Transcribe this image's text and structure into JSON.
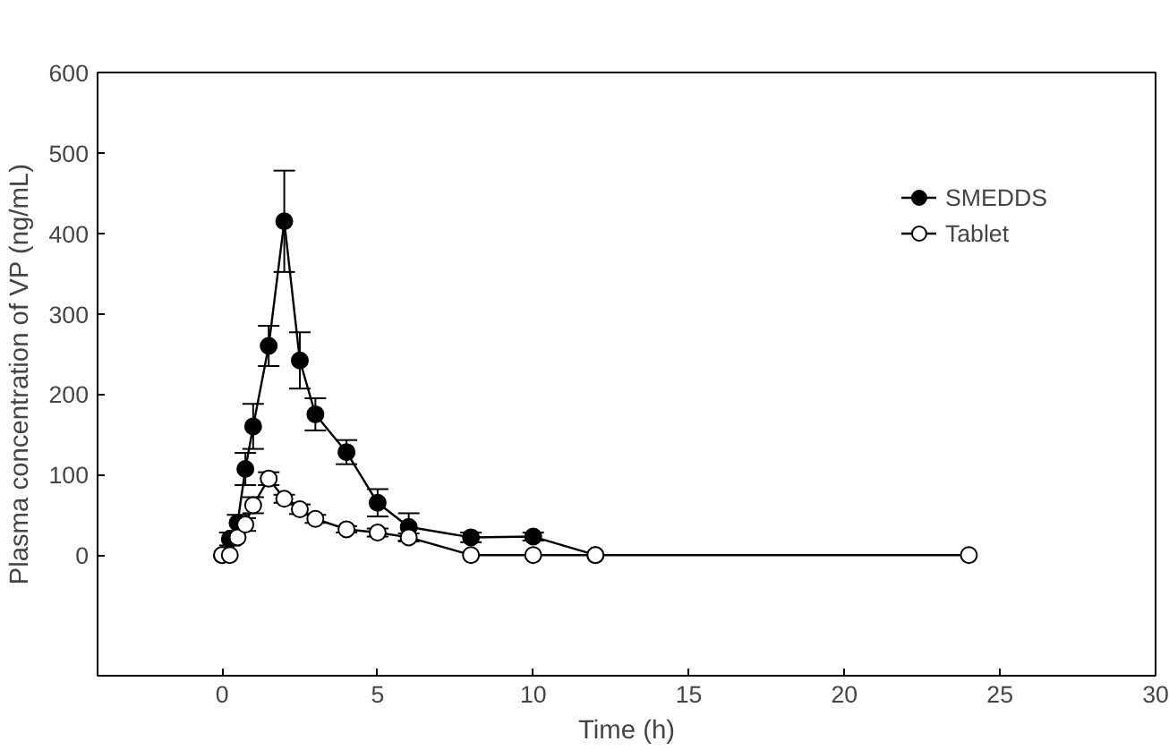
{
  "chart_data": {
    "type": "line",
    "xlabel": "Time (h)",
    "ylabel": "Plasma concentration of VP (ng/mL)",
    "xlim": [
      -4,
      30
    ],
    "ylim": [
      -150,
      600
    ],
    "xticks": [
      0,
      5,
      10,
      15,
      20,
      25,
      30
    ],
    "yticks": [
      0,
      100,
      200,
      300,
      400,
      500,
      600
    ],
    "grid": false,
    "legend": "top right",
    "line_style": "solid",
    "series": [
      {
        "name": "SMEDDS",
        "color": "#000000",
        "marker": "circle",
        "x": [
          0,
          0.25,
          0.5,
          0.75,
          1,
          1.5,
          2,
          2.5,
          3,
          4,
          5,
          6,
          8,
          10,
          12
        ],
        "values": [
          0,
          20,
          40,
          107,
          160,
          260,
          415,
          242,
          175,
          128,
          65,
          35,
          22,
          23,
          0
        ],
        "errors": [
          null,
          8,
          10,
          20,
          28,
          25,
          63,
          35,
          20,
          15,
          17,
          17,
          6,
          5,
          null
        ]
      },
      {
        "name": "Tablet",
        "color": "#ffffff",
        "marker": "circle",
        "x": [
          0,
          0.25,
          0.5,
          0.75,
          1,
          1.5,
          2,
          2.5,
          3,
          4,
          5,
          6,
          8,
          10,
          12,
          24
        ],
        "values": [
          0,
          0,
          22,
          38,
          62,
          95,
          70,
          57,
          45,
          32,
          28,
          22,
          0,
          0,
          0,
          0
        ],
        "errors": [
          null,
          null,
          null,
          8,
          10,
          8,
          5,
          6,
          5,
          4,
          5,
          5,
          null,
          null,
          null,
          null
        ]
      }
    ]
  }
}
